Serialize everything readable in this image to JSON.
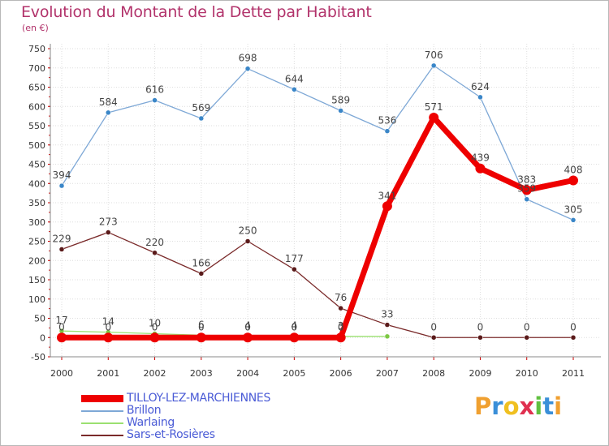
{
  "header": {
    "title": "Evolution du Montant de la Dette par Habitant",
    "unit": "(en €)"
  },
  "chart_data": {
    "type": "line",
    "title": "Evolution du Montant de la Dette par Habitant",
    "ylabel": "(en €)",
    "xlabel": "",
    "x": [
      "2000",
      "2001",
      "2002",
      "2003",
      "2004",
      "2005",
      "2006",
      "2007",
      "2008",
      "2009",
      "2010",
      "2011"
    ],
    "ylim": [
      -50,
      750
    ],
    "yticks": [
      -50,
      0,
      50,
      100,
      150,
      200,
      250,
      300,
      350,
      400,
      450,
      500,
      550,
      600,
      650,
      700,
      750
    ],
    "grid": true,
    "legend_position": "bottom-left",
    "series": [
      {
        "name": "TILLOY-LEZ-MARCHIENNES",
        "color": "#ee0000",
        "values": [
          0,
          0,
          0,
          0,
          0,
          0,
          0,
          341,
          571,
          439,
          383,
          408
        ],
        "labels": [
          "0",
          "0",
          "0",
          "0",
          "0",
          "0",
          "0",
          "341",
          "571",
          "439",
          "383",
          "408"
        ]
      },
      {
        "name": "Brillon",
        "color": "#7ea8d6",
        "values": [
          394,
          584,
          616,
          569,
          698,
          644,
          589,
          536,
          706,
          624,
          359,
          305
        ],
        "labels": [
          "394",
          "584",
          "616",
          "569",
          "698",
          "644",
          "589",
          "536",
          "706",
          "624",
          "359",
          "305"
        ]
      },
      {
        "name": "Warlaing",
        "color": "#9be070",
        "values": [
          17,
          14,
          10,
          6,
          4,
          4,
          3,
          3,
          null,
          null,
          null,
          null
        ],
        "labels": [
          "17",
          "14",
          "10",
          "6",
          "4",
          "4",
          "3",
          "",
          "",
          "",
          "",
          ""
        ]
      },
      {
        "name": "Sars-et-Rosières",
        "color": "#7a2a2a",
        "values": [
          229,
          273,
          220,
          166,
          250,
          177,
          76,
          33,
          0,
          0,
          0,
          0
        ],
        "labels": [
          "229",
          "273",
          "220",
          "166",
          "250",
          "177",
          "76",
          "33",
          "0",
          "0",
          "0",
          "0"
        ]
      }
    ]
  },
  "legend": {
    "items": [
      {
        "label": "TILLOY-LEZ-MARCHIENNES",
        "color": "#ee0000"
      },
      {
        "label": "Brillon",
        "color": "#7ea8d6"
      },
      {
        "label": "Warlaing",
        "color": "#9be070"
      },
      {
        "label": "Sars-et-Rosières",
        "color": "#7a2a2a"
      }
    ]
  },
  "logo": {
    "letters": [
      "P",
      "r",
      "o",
      "x",
      "i",
      "t",
      "i"
    ],
    "colors": [
      "#f0a030",
      "#3a8fd8",
      "#f0c020",
      "#e03050",
      "#60c040",
      "#3a8fd8",
      "#f0a030"
    ]
  }
}
